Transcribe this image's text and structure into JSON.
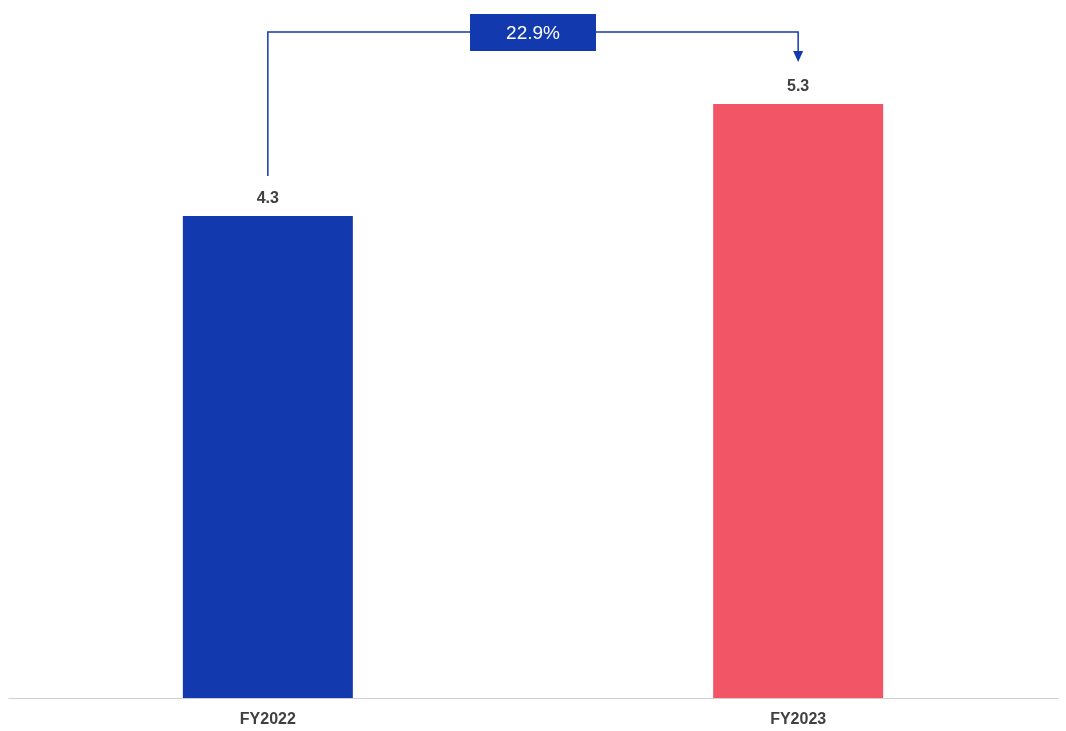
{
  "chart_data": {
    "type": "bar",
    "categories": [
      "FY2022",
      "FY2023"
    ],
    "values": [
      4.3,
      5.3
    ],
    "colors": [
      "#1339ae",
      "#f25565"
    ],
    "data_labels": true,
    "annotations": [
      "22.9%"
    ]
  }
}
